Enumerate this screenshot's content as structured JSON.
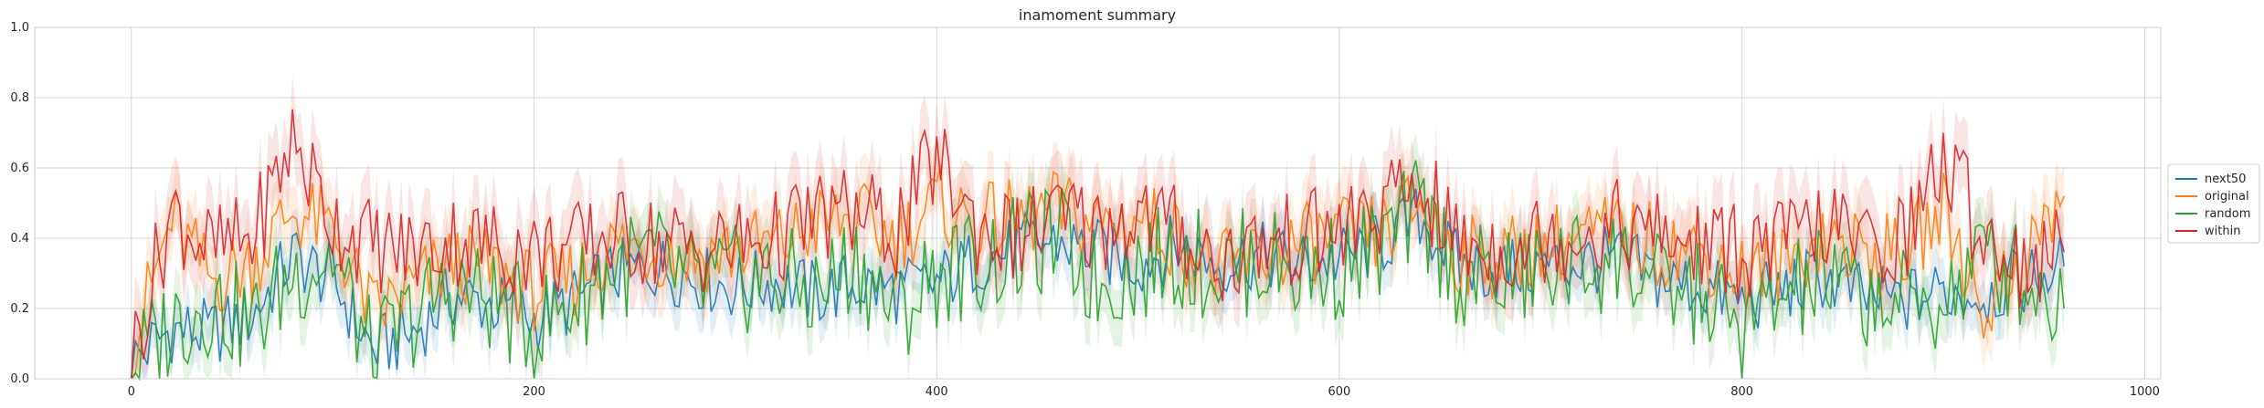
{
  "chart_data": {
    "type": "line",
    "title": "inamoment summary",
    "xlabel": "",
    "ylabel": "",
    "xlim": [
      -48,
      1008
    ],
    "ylim": [
      0,
      1.0
    ],
    "xticks": [
      0,
      200,
      400,
      600,
      800,
      1000
    ],
    "yticks": [
      0.0,
      0.2,
      0.4,
      0.6,
      0.8,
      1.0
    ],
    "xtick_labels": [
      "0",
      "200",
      "400",
      "600",
      "800",
      "1000"
    ],
    "ytick_labels": [
      "0.0",
      "0.2",
      "0.4",
      "0.6",
      "0.8",
      "1.0"
    ],
    "grid": true,
    "legend": "right-outside",
    "bands": "shaded confidence band around each series",
    "series": [
      {
        "name": "next50",
        "color": "#1f77b4",
        "x": [
          0,
          20,
          40,
          60,
          80,
          100,
          120,
          140,
          160,
          180,
          200,
          220,
          240,
          260,
          280,
          300,
          320,
          340,
          360,
          380,
          400,
          420,
          440,
          460,
          480,
          500,
          520,
          540,
          560,
          580,
          600,
          620,
          640,
          660,
          680,
          700,
          720,
          740,
          760,
          780,
          800,
          820,
          840,
          860,
          880,
          900,
          920,
          940,
          960
        ],
        "y": [
          0.05,
          0.14,
          0.13,
          0.18,
          0.35,
          0.28,
          0.08,
          0.13,
          0.24,
          0.21,
          0.17,
          0.22,
          0.3,
          0.32,
          0.29,
          0.26,
          0.28,
          0.24,
          0.27,
          0.25,
          0.27,
          0.34,
          0.37,
          0.39,
          0.36,
          0.33,
          0.38,
          0.33,
          0.35,
          0.33,
          0.34,
          0.38,
          0.46,
          0.32,
          0.31,
          0.32,
          0.33,
          0.34,
          0.28,
          0.26,
          0.22,
          0.25,
          0.29,
          0.23,
          0.22,
          0.25,
          0.24,
          0.28,
          0.32
        ]
      },
      {
        "name": "original",
        "color": "#ff7f0e",
        "x": [
          0,
          20,
          40,
          60,
          80,
          100,
          120,
          140,
          160,
          180,
          200,
          220,
          240,
          260,
          280,
          300,
          320,
          340,
          360,
          380,
          400,
          420,
          440,
          460,
          480,
          500,
          520,
          540,
          560,
          580,
          600,
          620,
          640,
          660,
          680,
          700,
          720,
          740,
          760,
          780,
          800,
          820,
          840,
          860,
          880,
          900,
          920,
          940,
          960
        ],
        "y": [
          0.08,
          0.45,
          0.28,
          0.33,
          0.48,
          0.42,
          0.18,
          0.26,
          0.33,
          0.31,
          0.25,
          0.29,
          0.38,
          0.37,
          0.35,
          0.37,
          0.38,
          0.44,
          0.45,
          0.4,
          0.5,
          0.44,
          0.45,
          0.48,
          0.44,
          0.46,
          0.4,
          0.3,
          0.35,
          0.38,
          0.4,
          0.41,
          0.5,
          0.35,
          0.34,
          0.38,
          0.4,
          0.41,
          0.38,
          0.36,
          0.3,
          0.32,
          0.41,
          0.36,
          0.35,
          0.48,
          0.2,
          0.34,
          0.52
        ]
      },
      {
        "name": "random",
        "color": "#2ca02c",
        "x": [
          0,
          20,
          40,
          60,
          80,
          100,
          120,
          140,
          160,
          180,
          200,
          220,
          240,
          260,
          280,
          300,
          320,
          340,
          360,
          380,
          400,
          420,
          440,
          460,
          480,
          500,
          520,
          540,
          560,
          580,
          600,
          620,
          640,
          660,
          680,
          700,
          720,
          740,
          760,
          780,
          800,
          820,
          840,
          860,
          880,
          900,
          920,
          940,
          960
        ],
        "y": [
          0.03,
          0.16,
          0.22,
          0.15,
          0.3,
          0.35,
          0.05,
          0.18,
          0.26,
          0.22,
          0.14,
          0.22,
          0.32,
          0.34,
          0.26,
          0.28,
          0.29,
          0.24,
          0.34,
          0.18,
          0.3,
          0.33,
          0.36,
          0.4,
          0.27,
          0.32,
          0.35,
          0.31,
          0.34,
          0.31,
          0.32,
          0.37,
          0.48,
          0.29,
          0.28,
          0.3,
          0.33,
          0.34,
          0.25,
          0.24,
          0.13,
          0.23,
          0.28,
          0.24,
          0.21,
          0.22,
          0.35,
          0.29,
          0.2
        ]
      },
      {
        "name": "within",
        "color": "#d62728",
        "x": [
          0,
          20,
          40,
          60,
          80,
          100,
          120,
          140,
          160,
          180,
          200,
          220,
          240,
          260,
          280,
          300,
          320,
          340,
          360,
          380,
          400,
          420,
          440,
          460,
          480,
          500,
          520,
          540,
          560,
          580,
          600,
          620,
          640,
          660,
          680,
          700,
          720,
          740,
          760,
          780,
          800,
          820,
          840,
          860,
          880,
          900,
          920,
          940,
          960
        ],
        "y": [
          0.06,
          0.48,
          0.36,
          0.4,
          0.68,
          0.45,
          0.38,
          0.36,
          0.4,
          0.38,
          0.36,
          0.37,
          0.41,
          0.39,
          0.37,
          0.38,
          0.4,
          0.46,
          0.47,
          0.42,
          0.63,
          0.43,
          0.4,
          0.46,
          0.43,
          0.47,
          0.42,
          0.33,
          0.38,
          0.4,
          0.42,
          0.47,
          0.55,
          0.38,
          0.37,
          0.4,
          0.42,
          0.44,
          0.4,
          0.38,
          0.36,
          0.38,
          0.44,
          0.38,
          0.4,
          0.62,
          0.42,
          0.32,
          0.36
        ]
      }
    ]
  }
}
